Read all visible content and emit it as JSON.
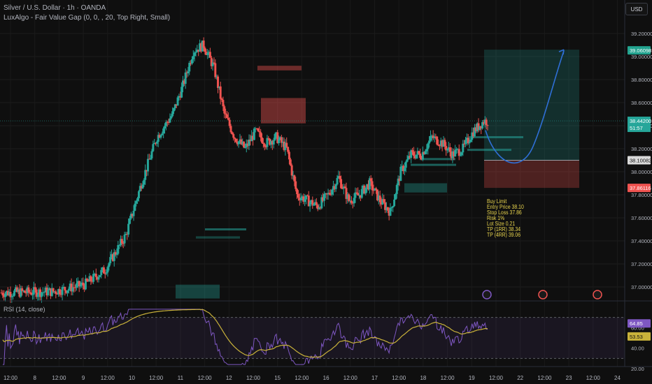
{
  "header": {
    "symbol_line": "Silver / U.S. Dollar · 1h · OANDA",
    "indicator_line": "LuxAlgo - Fair Value Gap (0, 0, , 20, Top Right, Small)",
    "currency_button": "USD"
  },
  "rsi_panel": {
    "label": "RSI (14, close)",
    "rsi_value": "64.85",
    "ma_value": "53.53",
    "levels": [
      "60.00",
      "40.00",
      "20.00"
    ]
  },
  "trade_note": [
    "Buy Limit",
    "Entry Price 38.10",
    "Stop Loss 37.86",
    "Risk 1%",
    "Lot Size 0.21",
    "TP (1RR) 38.34",
    "TP (4RR) 39.06"
  ],
  "price_badges": {
    "target": "39.06098",
    "current": "38.44200",
    "countdown": "51:57",
    "entry": "38.10082",
    "stop": "37.86116"
  },
  "colors": {
    "bull": "#26a69a",
    "bear": "#ef5350",
    "rsi_line": "#7e57c2",
    "rsi_ma": "#c9b23a",
    "projection": "#2f6fd6",
    "note": "#e8d44d"
  },
  "chart_data": {
    "type": "candlestick",
    "symbol": "Silver / U.S. Dollar",
    "timeframe": "1h",
    "ylim": [
      36.9,
      39.25
    ],
    "y_ticks": [
      "39.20000",
      "39.00000",
      "38.80000",
      "38.60000",
      "38.40000",
      "38.20000",
      "38.00000",
      "37.80000",
      "37.60000",
      "37.40000",
      "37.20000",
      "37.00000"
    ],
    "x_ticks": [
      "12:00",
      "8",
      "12:00",
      "9",
      "12:00",
      "10",
      "12:00",
      "11",
      "12:00",
      "12",
      "12:00",
      "15",
      "12:00",
      "16",
      "12:00",
      "17",
      "12:00",
      "18",
      "12:00",
      "19",
      "12:00",
      "22",
      "12:00",
      "23",
      "12:00",
      "24"
    ],
    "close_anchors": [
      [
        0,
        36.95
      ],
      [
        10,
        36.96
      ],
      [
        16,
        37.02
      ],
      [
        20,
        37.15
      ],
      [
        24,
        37.45
      ],
      [
        27,
        37.9
      ],
      [
        30,
        38.3
      ],
      [
        33,
        38.5
      ],
      [
        35,
        38.75
      ],
      [
        37,
        39.05
      ],
      [
        39,
        39.1
      ],
      [
        41,
        38.9
      ],
      [
        43,
        38.5
      ],
      [
        45,
        38.3
      ],
      [
        47,
        38.2
      ],
      [
        49,
        38.35
      ],
      [
        51,
        38.25
      ],
      [
        53,
        38.3
      ],
      [
        55,
        38.2
      ],
      [
        57,
        37.8
      ],
      [
        59,
        37.75
      ],
      [
        61,
        37.7
      ],
      [
        63,
        37.8
      ],
      [
        65,
        37.95
      ],
      [
        67,
        37.75
      ],
      [
        69,
        37.8
      ],
      [
        71,
        37.9
      ],
      [
        73,
        37.75
      ],
      [
        75,
        37.65
      ],
      [
        77,
        38.0
      ],
      [
        79,
        38.15
      ],
      [
        81,
        38.15
      ],
      [
        83,
        38.3
      ],
      [
        85,
        38.25
      ],
      [
        87,
        38.15
      ],
      [
        89,
        38.2
      ],
      [
        91,
        38.35
      ],
      [
        93,
        38.44
      ]
    ],
    "fair_value_gaps": [
      {
        "type": "bearish",
        "top": 38.92,
        "bottom": 38.88
      },
      {
        "type": "bearish",
        "top": 38.64,
        "bottom": 38.42
      },
      {
        "type": "bullish",
        "top": 37.9,
        "bottom": 37.82
      },
      {
        "type": "bullish",
        "top": 37.44,
        "bottom": 37.42
      },
      {
        "type": "bullish",
        "top": 37.02,
        "bottom": 36.9
      }
    ],
    "position": {
      "entry": 38.1,
      "stop": 37.86,
      "target": 39.06
    },
    "rsi": {
      "ylim": [
        20,
        80
      ],
      "levels": [
        70,
        30
      ],
      "last_rsi": 64.85,
      "last_ma": 53.53
    }
  }
}
